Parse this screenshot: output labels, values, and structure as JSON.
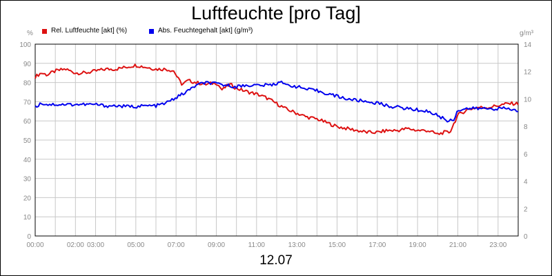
{
  "chart_data": {
    "type": "line",
    "title": "Luftfeuchte [pro Tag]",
    "date_label": "12.07",
    "left_unit": "%",
    "right_unit": "g/m³",
    "ylim_left": [
      0,
      100
    ],
    "ylim_right": [
      0,
      14
    ],
    "yticks_left": [
      "0",
      "10",
      "20",
      "30",
      "40",
      "50",
      "60",
      "70",
      "80",
      "90",
      "100"
    ],
    "yticks_right": [
      "0",
      "2",
      "4",
      "6",
      "8",
      "10",
      "12",
      "14"
    ],
    "x_ticks": [
      {
        "h": 0,
        "label": "00:00"
      },
      {
        "h": 2,
        "label": "02:00"
      },
      {
        "h": 3,
        "label": "03:00"
      },
      {
        "h": 5,
        "label": "05:00"
      },
      {
        "h": 7,
        "label": "07:00"
      },
      {
        "h": 9,
        "label": "09:00"
      },
      {
        "h": 11,
        "label": "11:00"
      },
      {
        "h": 13,
        "label": "13:00"
      },
      {
        "h": 15,
        "label": "15:00"
      },
      {
        "h": 17,
        "label": "17:00"
      },
      {
        "h": 19,
        "label": "19:00"
      },
      {
        "h": 21,
        "label": "21:00"
      },
      {
        "h": 23,
        "label": "23:00"
      }
    ],
    "grid": true,
    "legend_position": "top-left",
    "colors": {
      "rel": "#dd1111",
      "abs": "#0000ee",
      "grid": "#c8c8c8",
      "axis": "#888888"
    },
    "series": [
      {
        "name": "Rel. Luftfeuchte [akt] (%)",
        "axis": "left",
        "color": "#dd1111",
        "x": [
          0,
          0.3,
          0.6,
          1,
          1.5,
          2,
          2.5,
          3,
          3.5,
          4,
          4.5,
          5,
          5.5,
          6,
          6.5,
          6.9,
          7.1,
          7.3,
          7.6,
          8,
          8.5,
          9,
          9.3,
          9.5,
          9.7,
          10,
          10.3,
          10.6,
          11,
          11.5,
          12,
          12.5,
          13,
          13.5,
          14,
          14.5,
          15,
          15.5,
          16,
          16.5,
          17,
          17.5,
          18,
          18.5,
          19,
          19.5,
          20,
          20.3,
          20.6,
          21,
          21.5,
          22,
          22.5,
          23,
          23.5,
          24
        ],
        "y": [
          83,
          85,
          84,
          86,
          87,
          85,
          85,
          86,
          87,
          87,
          88,
          89,
          88,
          87,
          87,
          86,
          82,
          79,
          81,
          80,
          79,
          80,
          76,
          78,
          79,
          77,
          76,
          75,
          74,
          72,
          69,
          66,
          64,
          62,
          61,
          59,
          57,
          56,
          55,
          54,
          54,
          55,
          55,
          56,
          55,
          55,
          53,
          54,
          54,
          63,
          66,
          67,
          67,
          68,
          69,
          69
        ]
      },
      {
        "name": "Abs. Feuchtegehalt [akt] (g/m³)",
        "axis": "right",
        "color": "#0000ee",
        "x": [
          0,
          0.3,
          0.6,
          1,
          1.5,
          2,
          2.5,
          3,
          3.5,
          4,
          4.5,
          5,
          5.5,
          6,
          6.5,
          7,
          7.5,
          8,
          8.5,
          9,
          9.5,
          10,
          10.5,
          11,
          11.5,
          12,
          12.2,
          12.4,
          12.7,
          13,
          13.5,
          14,
          14.5,
          15,
          15.5,
          16,
          16.5,
          17,
          17.5,
          18,
          18.5,
          19,
          19.5,
          20,
          20.5,
          20.8,
          21,
          21.5,
          22,
          22.5,
          23,
          23.5,
          24
        ],
        "y": [
          9.4,
          9.7,
          9.6,
          9.6,
          9.6,
          9.6,
          9.6,
          9.6,
          9.5,
          9.5,
          9.45,
          9.45,
          9.5,
          9.5,
          9.7,
          10.1,
          10.5,
          11.0,
          11.2,
          11.1,
          11.0,
          10.9,
          11.0,
          11.0,
          11.0,
          11.1,
          11.4,
          11.0,
          11.0,
          10.9,
          10.7,
          10.6,
          10.4,
          10.2,
          10.0,
          9.9,
          9.8,
          9.7,
          9.5,
          9.4,
          9.3,
          9.2,
          9.1,
          8.8,
          8.4,
          8.5,
          9.2,
          9.3,
          9.3,
          9.3,
          9.3,
          9.3,
          9.1
        ]
      }
    ]
  }
}
